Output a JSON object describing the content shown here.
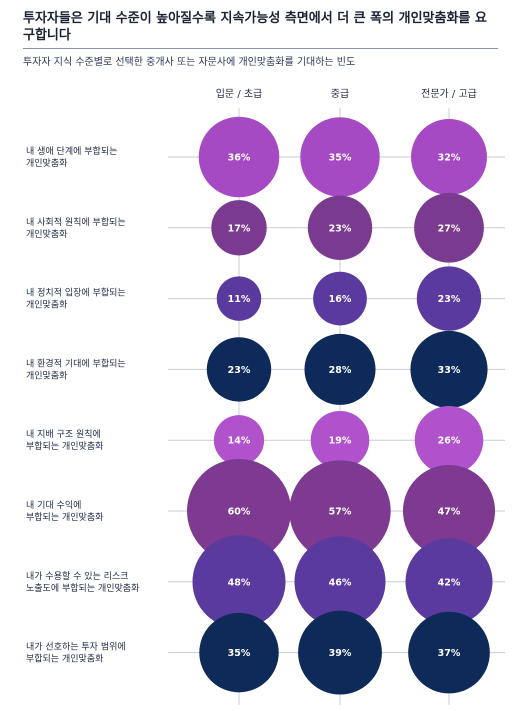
{
  "header": {
    "title": "투자자들은 기대 수준이 높아질수록 지속가능성 측면에서 더 큰 폭의 개인맞춤화를 요구합니다",
    "subtitle": "투자자 지식 수준별로 선택한 중개사 또는 자문사에 개인맞춤화를 기대하는 빈도"
  },
  "chart_data": {
    "type": "bubble",
    "title": "투자자들은 기대 수준이 높아질수록 지속가능성 측면에서 더 큰 폭의 개인맞춤화를 요구합니다",
    "subtitle": "투자자 지식 수준별로 선택한 중개사 또는 자문사에 개인맞춤화를 기대하는 빈도",
    "columns": [
      "입문 / 초급",
      "중급",
      "전문가 / 고급"
    ],
    "rows": [
      {
        "label": [
          "내 생애 단계에 부합되는",
          "개인맞춤화"
        ],
        "values": [
          36,
          35,
          32
        ],
        "color": "#a64ac4"
      },
      {
        "label": [
          "내 사회적 원칙에 부합되는",
          "개인맞춤화"
        ],
        "values": [
          17,
          23,
          27
        ],
        "color": "#7a3a8f"
      },
      {
        "label": [
          "내 정치적 입장에 부합되는",
          "개인맞춤화"
        ],
        "values": [
          11,
          16,
          23
        ],
        "color": "#5b3aa0"
      },
      {
        "label": [
          "내 환경적 기대에 부합되는",
          "개인맞춤화"
        ],
        "values": [
          23,
          28,
          33
        ],
        "color": "#0d2a5a"
      },
      {
        "label": [
          "내 지배 구조 원칙에",
          "부합되는 개인맞춤화"
        ],
        "values": [
          14,
          19,
          26
        ],
        "color": "#b052cc"
      },
      {
        "label": [
          "내 기대 수익에",
          "부합되는 개인맞춤화"
        ],
        "values": [
          60,
          57,
          47
        ],
        "color": "#7d3a90"
      },
      {
        "label": [
          "내가 수용할 수 있는 리스크",
          "노출도에 부합되는 개인맞춤화"
        ],
        "values": [
          48,
          46,
          42
        ],
        "color": "#5a3a9e"
      },
      {
        "label": [
          "내가 선호하는 투자 범위에",
          "부합되는 개인맞춤화"
        ],
        "values": [
          35,
          39,
          37
        ],
        "color": "#0e2a58"
      }
    ],
    "value_suffix": "%"
  }
}
